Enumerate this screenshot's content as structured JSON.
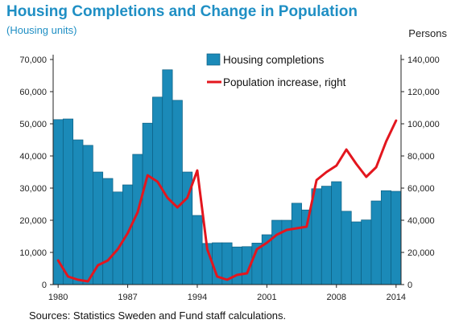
{
  "chart_data": {
    "type": "bar+line",
    "title": "Housing Completions and Change in Population",
    "subtitle": "(Housing units)",
    "right_axis_unit": "Persons",
    "source": "Sources: Statistics Sweden and Fund staff calculations.",
    "x": [
      1980,
      1981,
      1982,
      1983,
      1984,
      1985,
      1986,
      1987,
      1988,
      1989,
      1990,
      1991,
      1992,
      1993,
      1994,
      1995,
      1996,
      1997,
      1998,
      1999,
      2000,
      2001,
      2002,
      2003,
      2004,
      2005,
      2006,
      2007,
      2008,
      2009,
      2010,
      2011,
      2012,
      2013,
      2014
    ],
    "x_tick_labels": [
      "1980",
      "1987",
      "1994",
      "2001",
      "2008",
      "2014"
    ],
    "left_ylim": [
      0,
      70000
    ],
    "left_ticks": [
      "0",
      "10,000",
      "20,000",
      "30,000",
      "40,000",
      "50,000",
      "60,000",
      "70,000"
    ],
    "right_ylim": [
      0,
      140000
    ],
    "right_ticks": [
      "0",
      "20,000",
      "40,000",
      "60,000",
      "80,000",
      "100,000",
      "120,000",
      "140,000"
    ],
    "series": [
      {
        "name": "Housing completions",
        "axis": "left",
        "kind": "bar",
        "color": "#1b8ab8",
        "values": [
          51300,
          51500,
          45000,
          43300,
          35000,
          33000,
          28800,
          31000,
          40500,
          50200,
          58300,
          66800,
          57300,
          35000,
          21500,
          12800,
          13000,
          13000,
          11700,
          11800,
          12900,
          15500,
          20000,
          20000,
          25300,
          23200,
          29800,
          30600,
          32000,
          22800,
          19500,
          20100,
          26000,
          29200,
          29000
        ]
      },
      {
        "name": "Population increase, right",
        "axis": "right",
        "kind": "line",
        "color": "#e3161e",
        "values": [
          15000,
          5000,
          3000,
          2000,
          12000,
          15000,
          22000,
          32000,
          45000,
          68000,
          64000,
          54000,
          48000,
          54000,
          71000,
          22000,
          5000,
          3000,
          6000,
          7000,
          22000,
          26000,
          31000,
          34000,
          35000,
          36000,
          65000,
          70000,
          74000,
          84000,
          75000,
          67000,
          73000,
          89000,
          102000
        ]
      }
    ],
    "grid": false,
    "legend_position": "top-center"
  },
  "colors": {
    "title": "#1f8fc4",
    "bar": "#1b8ab8",
    "bar_edge": "#0c5f82",
    "line": "#e3161e",
    "axis": "#222222"
  }
}
